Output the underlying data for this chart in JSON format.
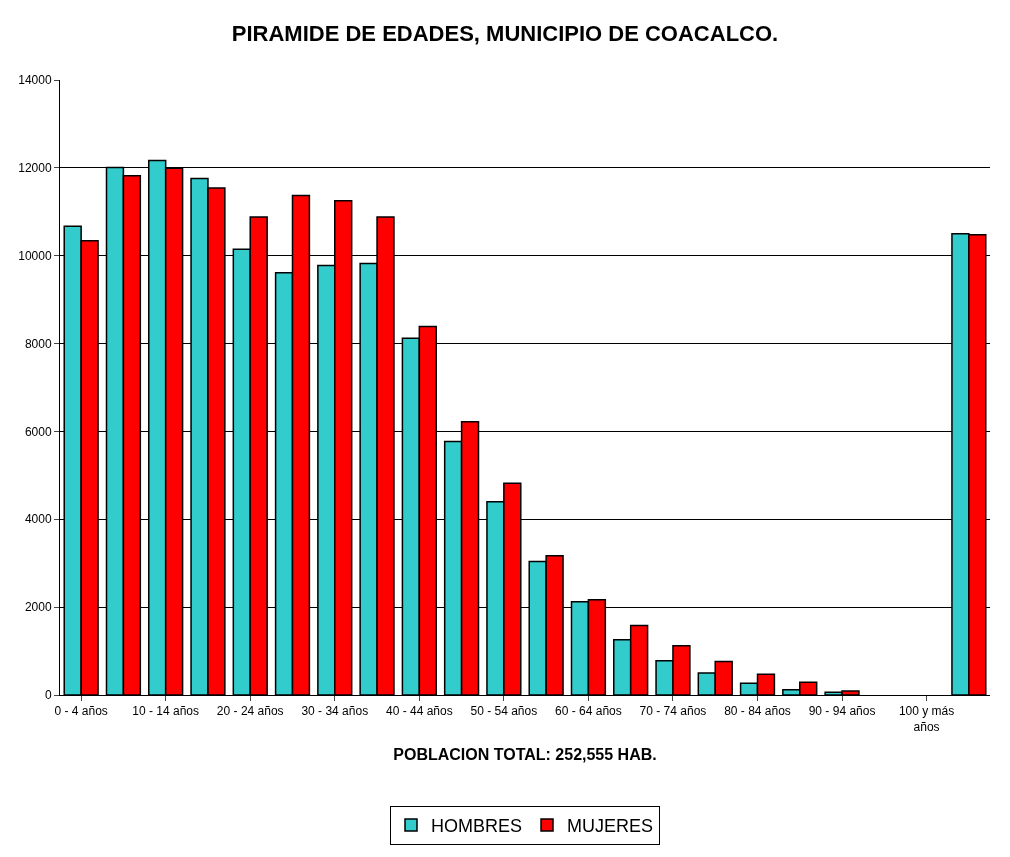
{
  "chart_data": {
    "type": "bar",
    "title": "PIRAMIDE DE EDADES, MUNICIPIO DE COACALCO.",
    "xlabel": "POBLACION TOTAL: 252,555 HAB.",
    "categories": [
      "0 - 4 años",
      null,
      "10 - 14 años",
      null,
      "20 - 24 años",
      null,
      "30 - 34 años",
      null,
      "40 - 44 años",
      null,
      "50 - 54 años",
      null,
      "60 - 64 años",
      null,
      "70 - 74 años",
      null,
      "80 - 84 años",
      null,
      "90 - 94 años",
      null,
      "100 y más años",
      null
    ],
    "series": [
      {
        "name": "HOMBRES",
        "color": "#33cccc",
        "values": [
          10670,
          12010,
          12170,
          11760,
          10150,
          9610,
          9780,
          9820,
          8120,
          5770,
          4400,
          3040,
          2120,
          1260,
          780,
          500,
          270,
          120,
          60,
          null,
          null,
          10500
        ]
      },
      {
        "name": "MUJERES",
        "color": "#ff0000",
        "values": [
          10340,
          11820,
          11990,
          11540,
          10880,
          11370,
          11250,
          10880,
          8390,
          6220,
          4820,
          3170,
          2170,
          1580,
          1120,
          760,
          470,
          290,
          90,
          null,
          null,
          10480
        ]
      }
    ],
    "ylim": [
      0,
      14000
    ],
    "yticks": [
      0,
      2000,
      4000,
      6000,
      8000,
      10000,
      12000,
      14000
    ],
    "grid": "y",
    "legend": "bottom"
  }
}
